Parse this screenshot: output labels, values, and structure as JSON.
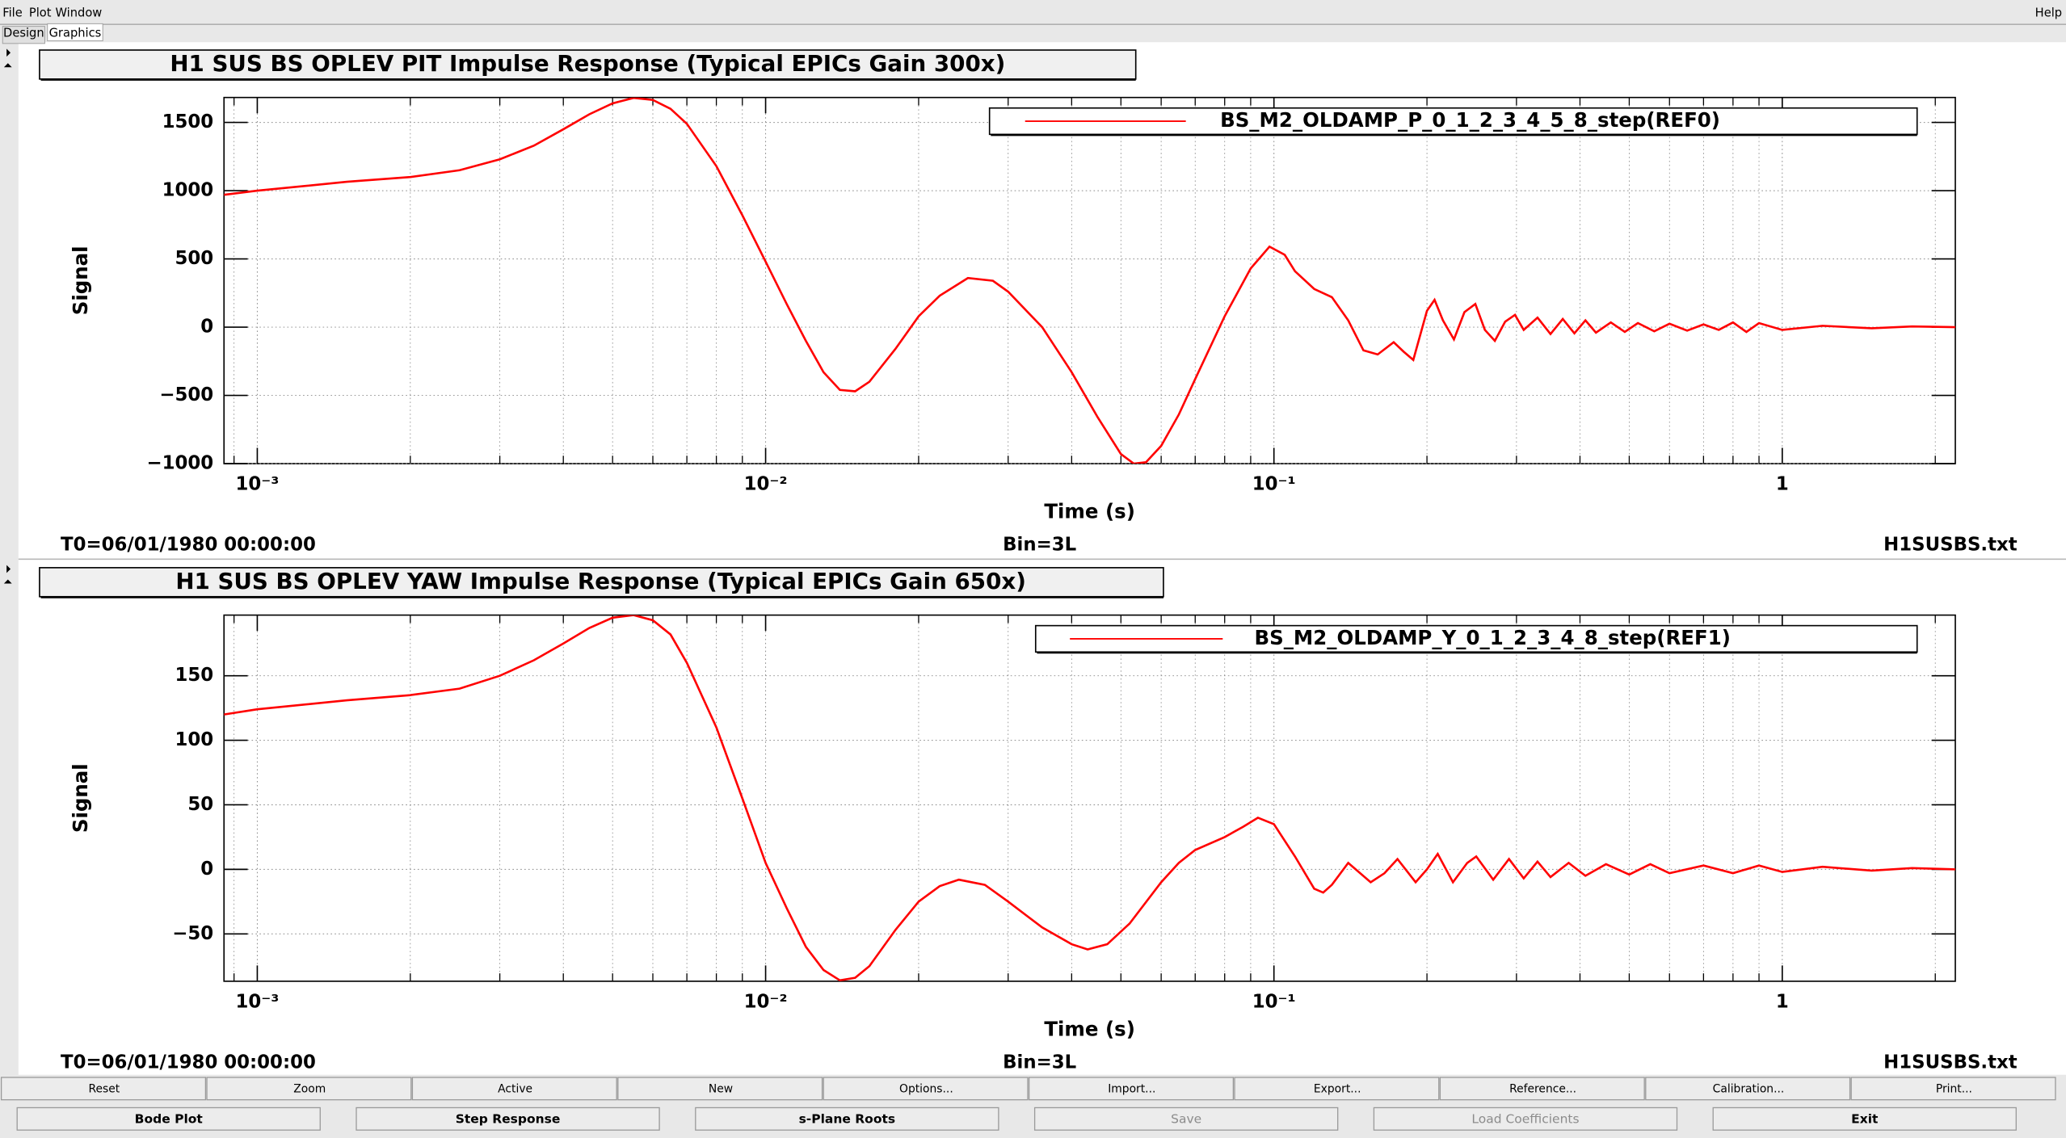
{
  "menu": [
    "File",
    "Plot",
    "Window"
  ],
  "help": "Help",
  "tabs": [
    "Design",
    "Graphics"
  ],
  "chart_data": [
    {
      "type": "line",
      "title": "H1 SUS BS OPLEV PIT Impulse Response (Typical EPICs Gain 300x)",
      "xlabel": "Time (s)",
      "ylabel": "Signal",
      "xscale": "log",
      "grid": true,
      "legend": "upper right",
      "xlim": [
        0.00086,
        2.19
      ],
      "ylim": [
        -1000,
        1683
      ],
      "xticks": [
        {
          "value": 0.001,
          "label": "10⁻³"
        },
        {
          "value": 0.01,
          "label": "10⁻²"
        },
        {
          "value": 0.1,
          "label": "10⁻¹"
        },
        1
      ],
      "xminorticks": [
        0.0009,
        0.002,
        0.003,
        0.004,
        0.005,
        0.006,
        0.007,
        0.008,
        0.009,
        0.02,
        0.03,
        0.04,
        0.05,
        0.06,
        0.07,
        0.08,
        0.09,
        0.2,
        0.3,
        0.4,
        0.5,
        0.6,
        0.7,
        0.8,
        0.9,
        2
      ],
      "yticks": [
        {
          "value": -1000,
          "label": "−1000"
        },
        {
          "value": -500,
          "label": "−500"
        },
        0,
        500,
        1000,
        1500
      ],
      "x": [
        0.00086,
        0.001,
        0.0015,
        0.002,
        0.0025,
        0.003,
        0.0035,
        0.004,
        0.0045,
        0.005,
        0.0055,
        0.006,
        0.0065,
        0.007,
        0.008,
        0.009,
        0.01,
        0.011,
        0.012,
        0.013,
        0.014,
        0.015,
        0.016,
        0.018,
        0.02,
        0.022,
        0.025,
        0.028,
        0.03,
        0.035,
        0.04,
        0.045,
        0.05,
        0.053,
        0.056,
        0.06,
        0.065,
        0.07,
        0.08,
        0.09,
        0.098,
        0.105,
        0.11,
        0.12,
        0.13,
        0.14,
        0.15,
        0.16,
        0.172,
        0.18,
        0.188,
        0.2,
        0.207,
        0.215,
        0.226,
        0.237,
        0.249,
        0.26,
        0.272,
        0.285,
        0.298,
        0.31,
        0.33,
        0.35,
        0.37,
        0.39,
        0.41,
        0.43,
        0.46,
        0.49,
        0.52,
        0.56,
        0.6,
        0.65,
        0.7,
        0.75,
        0.8,
        0.85,
        0.9,
        1.0,
        1.2,
        1.5,
        1.8,
        2.19
      ],
      "series": [
        {
          "name": "BS_M2_OLDAMP_P_0_1_2_3_4_5_8_step(REF0)",
          "color": "#ff0000",
          "values": [
            970,
            1000,
            1065,
            1100,
            1150,
            1230,
            1330,
            1450,
            1560,
            1640,
            1680,
            1665,
            1600,
            1490,
            1180,
            820,
            480,
            170,
            -100,
            -330,
            -460,
            -470,
            -400,
            -160,
            80,
            230,
            360,
            340,
            260,
            0,
            -330,
            -660,
            -930,
            -1000,
            -990,
            -870,
            -640,
            -380,
            80,
            430,
            590,
            530,
            410,
            280,
            220,
            50,
            -170,
            -200,
            -110,
            -180,
            -240,
            120,
            200,
            50,
            -90,
            110,
            170,
            -20,
            -100,
            40,
            90,
            -20,
            70,
            -50,
            60,
            -45,
            50,
            -40,
            35,
            -35,
            30,
            -30,
            25,
            -25,
            20,
            -20,
            35,
            -35,
            30,
            -20,
            10,
            -8,
            5,
            0
          ]
        }
      ],
      "footer": {
        "t0": "T0=06/01/1980 00:00:00",
        "bin": "Bin=3L",
        "file": "H1SUSBS.txt"
      }
    },
    {
      "type": "line",
      "title": "H1 SUS BS OPLEV YAW Impulse Response (Typical EPICs Gain 650x)",
      "xlabel": "Time (s)",
      "ylabel": "Signal",
      "xscale": "log",
      "grid": true,
      "legend": "upper right",
      "xlim": [
        0.00086,
        2.19
      ],
      "ylim": [
        -86.7,
        197
      ],
      "xticks": [
        {
          "value": 0.001,
          "label": "10⁻³"
        },
        {
          "value": 0.01,
          "label": "10⁻²"
        },
        {
          "value": 0.1,
          "label": "10⁻¹"
        },
        1
      ],
      "xminorticks": [
        0.0009,
        0.002,
        0.003,
        0.004,
        0.005,
        0.006,
        0.007,
        0.008,
        0.009,
        0.02,
        0.03,
        0.04,
        0.05,
        0.06,
        0.07,
        0.08,
        0.09,
        0.2,
        0.3,
        0.4,
        0.5,
        0.6,
        0.7,
        0.8,
        0.9,
        2
      ],
      "yticks": [
        {
          "value": -50,
          "label": "−50"
        },
        0,
        50,
        100,
        150
      ],
      "x": [
        0.00086,
        0.001,
        0.0015,
        0.002,
        0.0025,
        0.003,
        0.0035,
        0.004,
        0.0045,
        0.005,
        0.0055,
        0.006,
        0.0065,
        0.007,
        0.008,
        0.009,
        0.01,
        0.011,
        0.012,
        0.013,
        0.014,
        0.015,
        0.016,
        0.018,
        0.02,
        0.022,
        0.024,
        0.027,
        0.03,
        0.035,
        0.04,
        0.043,
        0.047,
        0.052,
        0.06,
        0.065,
        0.07,
        0.08,
        0.087,
        0.093,
        0.1,
        0.11,
        0.12,
        0.125,
        0.13,
        0.14,
        0.155,
        0.165,
        0.175,
        0.19,
        0.2,
        0.21,
        0.225,
        0.24,
        0.25,
        0.27,
        0.29,
        0.31,
        0.33,
        0.35,
        0.38,
        0.41,
        0.45,
        0.5,
        0.55,
        0.6,
        0.7,
        0.8,
        0.9,
        1.0,
        1.2,
        1.5,
        1.8,
        2.19
      ],
      "series": [
        {
          "name": "BS_M2_OLDAMP_Y_0_1_2_3_4_8_step(REF1)",
          "color": "#ff0000",
          "values": [
            120,
            124,
            131,
            135,
            140,
            150,
            162,
            175,
            187,
            195,
            197,
            193,
            182,
            160,
            110,
            55,
            5,
            -30,
            -60,
            -78,
            -86,
            -84,
            -75,
            -47,
            -25,
            -13,
            -8,
            -12,
            -25,
            -45,
            -58,
            -62,
            -58,
            -42,
            -10,
            5,
            15,
            25,
            33,
            40,
            35,
            10,
            -15,
            -18,
            -12,
            5,
            -10,
            -3,
            8,
            -10,
            0,
            12,
            -10,
            5,
            10,
            -8,
            8,
            -7,
            6,
            -6,
            5,
            -5,
            4,
            -4,
            4,
            -3,
            3,
            -3,
            3,
            -2,
            2,
            -1,
            1,
            0
          ]
        }
      ],
      "footer": {
        "t0": "T0=06/01/1980 00:00:00",
        "bin": "Bin=3L",
        "file": "H1SUSBS.txt"
      }
    }
  ],
  "buttons_row1": [
    "Reset",
    "Zoom",
    "Active",
    "New",
    "Options...",
    "Import...",
    "Export...",
    "Reference...",
    "Calibration...",
    "Print..."
  ],
  "buttons_row2": [
    {
      "label": "Bode Plot",
      "enabled": true
    },
    {
      "label": "Step Response",
      "enabled": true
    },
    {
      "label": "s-Plane Roots",
      "enabled": true
    },
    {
      "label": "Save",
      "enabled": false
    },
    {
      "label": "Load Coefficients",
      "enabled": false
    },
    {
      "label": "Exit",
      "enabled": true
    }
  ]
}
